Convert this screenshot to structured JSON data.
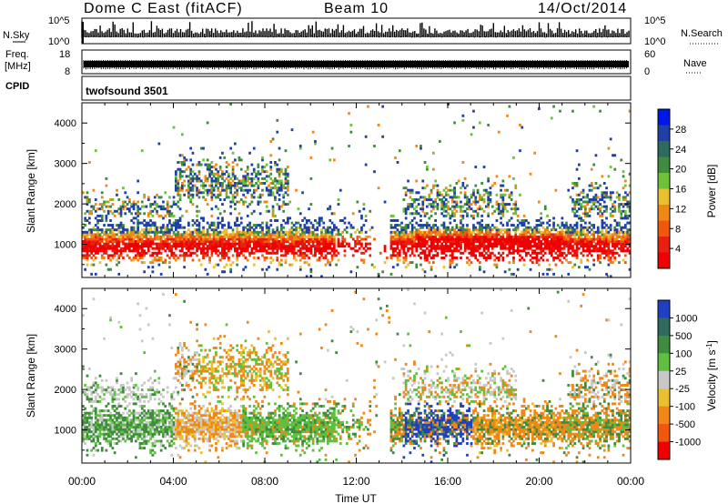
{
  "header": {
    "station": "Dome C East (fitACF)",
    "beam": "Beam 10",
    "date": "14/Oct/2014"
  },
  "params": {
    "nsky_label": "N.Sky",
    "nsky_hi": "10^5",
    "nsky_lo": "10^0",
    "nsearch_label": "N.Search",
    "nsearch_hi": "10^5",
    "nsearch_lo": "10^0",
    "freq_label": "Freq.",
    "freq_unit": "[MHz]",
    "freq_hi": "18",
    "freq_lo": "8",
    "nave_label": "Nave",
    "nave_hi": "60",
    "nave_lo": "0",
    "cpid_label": "CPID",
    "cpid_value": "twofsound 3501"
  },
  "colors": {
    "power": [
      "#0018e6",
      "#2040a8",
      "#2e6a5e",
      "#3f8b3f",
      "#6fc13a",
      "#e8c030",
      "#f08818",
      "#f05810",
      "#e82010",
      "#f00000"
    ],
    "velocity": [
      "#2040c0",
      "#2e6a5e",
      "#3f8b3f",
      "#5fc040",
      "#c8c8c8",
      "#e8c030",
      "#f08818",
      "#f05810",
      "#f00000"
    ]
  },
  "chart_data": [
    {
      "type": "heatmap",
      "panel": "power",
      "ylabel": "Slant Range [km]",
      "yticks": [
        1000,
        2000,
        3000,
        4000
      ],
      "ylim": [
        180,
        4500
      ],
      "xlim": [
        0,
        24
      ],
      "colorbar_label": "Power [dB]",
      "colorbar_ticks": [
        "28",
        "24",
        "20",
        "16",
        "12",
        "8",
        "4"
      ],
      "colorbar_range": [
        0,
        30
      ]
    },
    {
      "type": "heatmap",
      "panel": "velocity",
      "ylabel": "Slant Range [km]",
      "yticks": [
        1000,
        2000,
        3000,
        4000
      ],
      "ylim": [
        180,
        4500
      ],
      "xlim": [
        0,
        24
      ],
      "colorbar_label": "Velocity [m s",
      "colorbar_sup": "-1",
      "colorbar_label_end": "]",
      "colorbar_ticks": [
        "1000",
        "500",
        "100",
        "25",
        "-25",
        "-100",
        "-500",
        "-1000"
      ]
    }
  ],
  "xaxis": {
    "ticks": [
      "00:00",
      "04:00",
      "08:00",
      "12:00",
      "16:00",
      "20:00",
      "00:00"
    ],
    "label": "Time UT"
  }
}
